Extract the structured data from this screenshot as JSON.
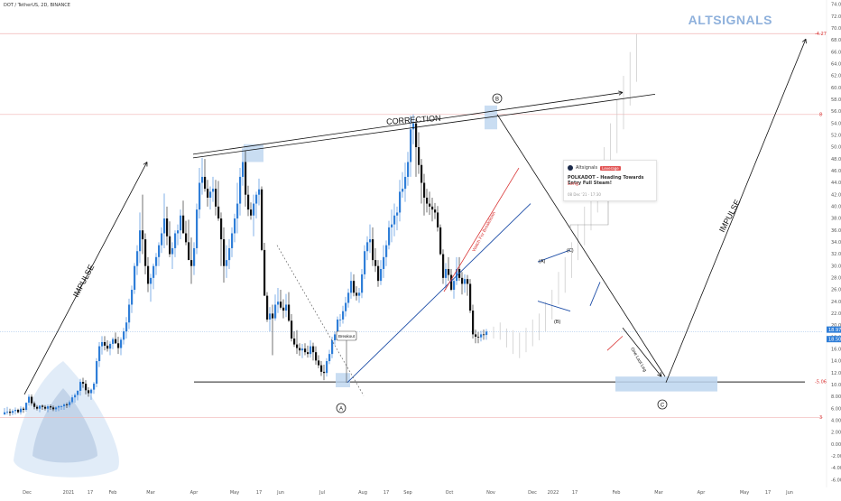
{
  "legend": {
    "symbol": "DOT / TetherUS, 2D, BINANCE"
  },
  "brand": {
    "name": "ALTSIGNALS"
  },
  "idea_card": {
    "author": "Altsignals",
    "badge": "Leverage",
    "title": "POLKADOT - Heading Towards Entry Full Steam!",
    "direction": "Long",
    "date": "08 Dec '21 · 17:30"
  },
  "annotations": {
    "correction": "CORRECTION",
    "impulse_left": "IMPULSE",
    "impulse_right": "IMPULSE",
    "watch_breakdown": "Watch For Breakdown",
    "one_last_leg": "One Last Leg",
    "breakout": "Breakout",
    "wave_a": "A",
    "wave_b": "B",
    "wave_c": "C",
    "sub_a": "(A)",
    "sub_b": "(B)",
    "sub_c": "(C)"
  },
  "colors": {
    "up_candle": "#2f7ed8",
    "down_candle": "#111111",
    "trend_line_blue": "#1f4fa8",
    "trend_line_red": "#d93535",
    "zone_fill": "#bcd5ef",
    "level_red": "#f0b3b3",
    "price_tag": "#2f7ed8",
    "brand": "#8fb1dc"
  },
  "chart_data": {
    "type": "candlestick",
    "symbol": "DOT / TetherUS",
    "interval": "2D",
    "exchange": "BINANCE",
    "x_tick_labels": [
      "Dec",
      "2021",
      "17",
      "Feb",
      "Mar",
      "Apr",
      "May",
      "17",
      "Jun",
      "Jul",
      "Aug",
      "17",
      "Sep",
      "Oct",
      "Nov",
      "Dec",
      "2022",
      "17",
      "Feb",
      "Mar",
      "Apr",
      "May",
      "17",
      "Jun"
    ],
    "y_tick_labels": [
      "74.00",
      "72.00",
      "70.00",
      "68.00",
      "66.00",
      "64.00",
      "62.00",
      "60.00",
      "58.00",
      "56.00",
      "54.00",
      "52.00",
      "50.00",
      "48.00",
      "46.00",
      "44.00",
      "42.00",
      "40.00",
      "38.00",
      "36.00",
      "34.00",
      "32.00",
      "30.00",
      "28.00",
      "26.00",
      "24.00",
      "22.00",
      "20.00",
      "18.00",
      "16.00",
      "14.00",
      "12.00",
      "10.00",
      "8.00",
      "6.00",
      "4.00",
      "2.00",
      "0.00",
      "-2.00",
      "-4.00",
      "-6.00"
    ],
    "ylim": [
      -6.5,
      74
    ],
    "price_labels": {
      "current_top": "18.97",
      "current_bottom": "18.50",
      "level_top": "-4.27",
      "level_mid": "8",
      "level_support": "-5.06",
      "level_low": "3"
    },
    "levels": [
      {
        "name": "top-target",
        "value": 69.1,
        "style": "red-dotted"
      },
      {
        "name": "resistance",
        "value": 55.5,
        "style": "red-dotted"
      },
      {
        "name": "support",
        "value": 10.5,
        "style": "black-solid"
      },
      {
        "name": "low",
        "value": 4.5,
        "style": "red-dotted"
      }
    ],
    "candles": [
      [
        5,
        6.1,
        5.4
      ],
      [
        5.4,
        6.3,
        5
      ],
      [
        5.5,
        6,
        4.8
      ],
      [
        5.3,
        5.9,
        4.9
      ],
      [
        5.6,
        6.2,
        5
      ],
      [
        5.8,
        6,
        5.2
      ],
      [
        5.4,
        6.4,
        5
      ],
      [
        6,
        6.3,
        5.3
      ],
      [
        5.8,
        7,
        5.5
      ],
      [
        7,
        8.4,
        6.5
      ],
      [
        8,
        8.4,
        6.5
      ],
      [
        6.9,
        7.2,
        5.9
      ],
      [
        6.3,
        6.6,
        5.7
      ],
      [
        6,
        6.6,
        5.4
      ],
      [
        6.5,
        6.7,
        5.8
      ],
      [
        6.3,
        6.6,
        5.7
      ],
      [
        6,
        6.7,
        5.4
      ],
      [
        6.4,
        6.7,
        5.8
      ],
      [
        6.2,
        6.5,
        5.6
      ],
      [
        5.9,
        6.4,
        5.5
      ],
      [
        6.2,
        6.6,
        5.6
      ],
      [
        6.4,
        6.6,
        5.8
      ],
      [
        6.4,
        6.9,
        5.8
      ],
      [
        6.7,
        7,
        6.1
      ],
      [
        6.6,
        7.4,
        6.2
      ],
      [
        7.1,
        8.3,
        6.8
      ],
      [
        7.9,
        8.6,
        7
      ],
      [
        8.3,
        9.1,
        7.4
      ],
      [
        9,
        11,
        8.2
      ],
      [
        10.5,
        11.2,
        9.5
      ],
      [
        10.2,
        10.8,
        8.4
      ],
      [
        9.1,
        9.6,
        8
      ],
      [
        8.6,
        9.4,
        7.5
      ],
      [
        9.2,
        10.5,
        8.5
      ],
      [
        10.2,
        14.5,
        9.6
      ],
      [
        14,
        17.2,
        13
      ],
      [
        16.5,
        18.2,
        15.1
      ],
      [
        17.2,
        18.2,
        15.8
      ],
      [
        16.6,
        17.5,
        15.6
      ],
      [
        16.1,
        17.3,
        15
      ],
      [
        16.9,
        18,
        16
      ],
      [
        17.7,
        18.8,
        16.9
      ],
      [
        17,
        18.1,
        15.2
      ],
      [
        16.2,
        18,
        15
      ],
      [
        17.6,
        19.6,
        16.8
      ],
      [
        19,
        21.4,
        17.8
      ],
      [
        20.5,
        24.5,
        19.4
      ],
      [
        23.5,
        26.7,
        22.1
      ],
      [
        26,
        30.5,
        25.3
      ],
      [
        30,
        33.5,
        28.5
      ],
      [
        32.5,
        39,
        30.5
      ],
      [
        36,
        42,
        32
      ],
      [
        34.5,
        35.5,
        28.6
      ],
      [
        30,
        31.5,
        25.6
      ],
      [
        27,
        28.7,
        24
      ],
      [
        28,
        30.4,
        26.1
      ],
      [
        30,
        32.2,
        28.5
      ],
      [
        31.5,
        34,
        30
      ],
      [
        33.5,
        36.5,
        32.2
      ],
      [
        35.5,
        42.2,
        33
      ],
      [
        38,
        40,
        33.5
      ],
      [
        35,
        37.5,
        31.5
      ],
      [
        32,
        34,
        29.5
      ],
      [
        33,
        36,
        31.5
      ],
      [
        35.5,
        37,
        33.5
      ],
      [
        36,
        39.5,
        34.5
      ],
      [
        38.5,
        41,
        36.4
      ],
      [
        35.5,
        37.6,
        33.5
      ],
      [
        34,
        37.8,
        32.2
      ],
      [
        31,
        34.8,
        27
      ],
      [
        30,
        34,
        28.5
      ],
      [
        33,
        40.5,
        32
      ],
      [
        39.5,
        46.5,
        38
      ],
      [
        44,
        48.2,
        42
      ],
      [
        45,
        48,
        42.5
      ],
      [
        43,
        44.5,
        40
      ],
      [
        41.5,
        43.4,
        39.5
      ],
      [
        42.5,
        45,
        40.8
      ],
      [
        43,
        44.5,
        38.5
      ],
      [
        40,
        44.3,
        37.6
      ],
      [
        38,
        39,
        30
      ],
      [
        34.5,
        36.5,
        27.2
      ],
      [
        30,
        33.5,
        28
      ],
      [
        31,
        34.5,
        29.5
      ],
      [
        33,
        36.5,
        31.5
      ],
      [
        35.5,
        38.8,
        34
      ],
      [
        38,
        44,
        35.5
      ],
      [
        40.5,
        46.5,
        38.5
      ],
      [
        45,
        49.8,
        43.5
      ],
      [
        47.5,
        49.4,
        40
      ],
      [
        42,
        43.5,
        38.4
      ],
      [
        39.5,
        40.7,
        37.8
      ],
      [
        38.5,
        42,
        35
      ],
      [
        40.5,
        42.5,
        38
      ],
      [
        42,
        44.7,
        40.2
      ],
      [
        42.9,
        43.4,
        32.5
      ],
      [
        32.7,
        33.9,
        25.6
      ],
      [
        25,
        25.6,
        20.6
      ],
      [
        21,
        23.1,
        19
      ],
      [
        22,
        23.5,
        15
      ],
      [
        21.2,
        25.2,
        20.8
      ],
      [
        23.5,
        26.3,
        22.1
      ],
      [
        24,
        26,
        22.7
      ],
      [
        23,
        24.4,
        21.2
      ],
      [
        22.5,
        25.3,
        21.4
      ],
      [
        23.5,
        25.6,
        20.6
      ],
      [
        20.8,
        21.9,
        17.3
      ],
      [
        17.8,
        19,
        16.4
      ],
      [
        16.8,
        19.2,
        15.2
      ],
      [
        16.2,
        17,
        14.9
      ],
      [
        15.8,
        16.9,
        14.5
      ],
      [
        16.1,
        17,
        15
      ],
      [
        15.5,
        16.6,
        14.6
      ],
      [
        15.2,
        17.5,
        14.6
      ],
      [
        16.5,
        17.1,
        14.1
      ],
      [
        15.5,
        16.5,
        13.4
      ],
      [
        14.1,
        15,
        12.8
      ],
      [
        13.3,
        14,
        11.5
      ],
      [
        12.2,
        13.4,
        10.8
      ],
      [
        12,
        14.5,
        11.4
      ],
      [
        14,
        15.9,
        13.5
      ],
      [
        15.2,
        18.1,
        14.5
      ],
      [
        17.5,
        19,
        16.8
      ],
      [
        18.5,
        21.5,
        17.8
      ],
      [
        21,
        21.9,
        19.8
      ],
      [
        21,
        23.3,
        20.3
      ],
      [
        22.4,
        24.8,
        21.5
      ],
      [
        23.8,
        26.2,
        23
      ],
      [
        25.5,
        29,
        24.5
      ],
      [
        27.5,
        28.6,
        24.9
      ],
      [
        25.5,
        26.6,
        24.2
      ],
      [
        25,
        26.3,
        23.8
      ],
      [
        25.5,
        29.5,
        24.6
      ],
      [
        28.6,
        33.5,
        27.8
      ],
      [
        32.5,
        35,
        31
      ],
      [
        34,
        37,
        32.2
      ],
      [
        34.5,
        36.5,
        30
      ],
      [
        31,
        33,
        29
      ],
      [
        30,
        31,
        26.5
      ],
      [
        27.5,
        31,
        26.8
      ],
      [
        29.5,
        33.5,
        28
      ],
      [
        31.5,
        34.3,
        30
      ],
      [
        33.5,
        37.6,
        32.8
      ],
      [
        36.5,
        39.5,
        34
      ],
      [
        37,
        40.5,
        35
      ],
      [
        38.5,
        40,
        36
      ],
      [
        39,
        44.5,
        37.5
      ],
      [
        42.5,
        45.8,
        41.5
      ],
      [
        43,
        47.4,
        40.8
      ],
      [
        45,
        49.2,
        43.5
      ],
      [
        47.5,
        55.3,
        45
      ],
      [
        53,
        55.5,
        50.5
      ],
      [
        54,
        54.8,
        45
      ],
      [
        50,
        52.5,
        45.5
      ],
      [
        47,
        48,
        40.5
      ],
      [
        44,
        45.5,
        38.5
      ],
      [
        41.5,
        43,
        39
      ],
      [
        40.5,
        42.5,
        38.6
      ],
      [
        40,
        41.5,
        37.5
      ],
      [
        39.5,
        40.6,
        37.9
      ],
      [
        39,
        40.1,
        35.8
      ],
      [
        36.5,
        37,
        31.8
      ],
      [
        32,
        32.8,
        27
      ],
      [
        28,
        30.5,
        26
      ],
      [
        29.5,
        31.5,
        27.5
      ],
      [
        28.5,
        29.5,
        25.8
      ],
      [
        26,
        27.8,
        24.5
      ],
      [
        27.5,
        31.5,
        26.8
      ],
      [
        29.5,
        31.5,
        27.5
      ],
      [
        28,
        29,
        25.2
      ],
      [
        27,
        28.6,
        25.5
      ],
      [
        27.8,
        28.5,
        25
      ],
      [
        27,
        27.8,
        22.1
      ],
      [
        22.5,
        23.5,
        17.8
      ],
      [
        18.5,
        19.3,
        17
      ],
      [
        18.1,
        18.9,
        17
      ],
      [
        18,
        19.1,
        17.3
      ],
      [
        18.5,
        19.3,
        17.6
      ],
      [
        18.4,
        19.4,
        17.6
      ]
    ],
    "projection": {
      "description": "ghost bars after last candle",
      "bars": [
        [
          18.9,
          19.8,
          17.8
        ],
        [
          19,
          20.5,
          17.6
        ],
        [
          18,
          19.5,
          16.3
        ],
        [
          17.5,
          19.2,
          15.2
        ],
        [
          16.5,
          18.8,
          14.5
        ],
        [
          17,
          19.6,
          15.5
        ],
        [
          18,
          21,
          16.5
        ],
        [
          19.5,
          22,
          17.5
        ],
        [
          21.5,
          24,
          19
        ],
        [
          23,
          26,
          21
        ],
        [
          25,
          29,
          23.5
        ],
        [
          27.5,
          31.5,
          25.5
        ],
        [
          30,
          34,
          28
        ],
        [
          32.5,
          37,
          31
        ],
        [
          35,
          40,
          33.5
        ],
        [
          38,
          43,
          36
        ],
        [
          41,
          46.5,
          39
        ],
        [
          44,
          50,
          42
        ],
        [
          47,
          54,
          45
        ],
        [
          51,
          58,
          49
        ],
        [
          55,
          62,
          53
        ],
        [
          59,
          66,
          57
        ],
        [
          63,
          69,
          61
        ]
      ]
    }
  }
}
